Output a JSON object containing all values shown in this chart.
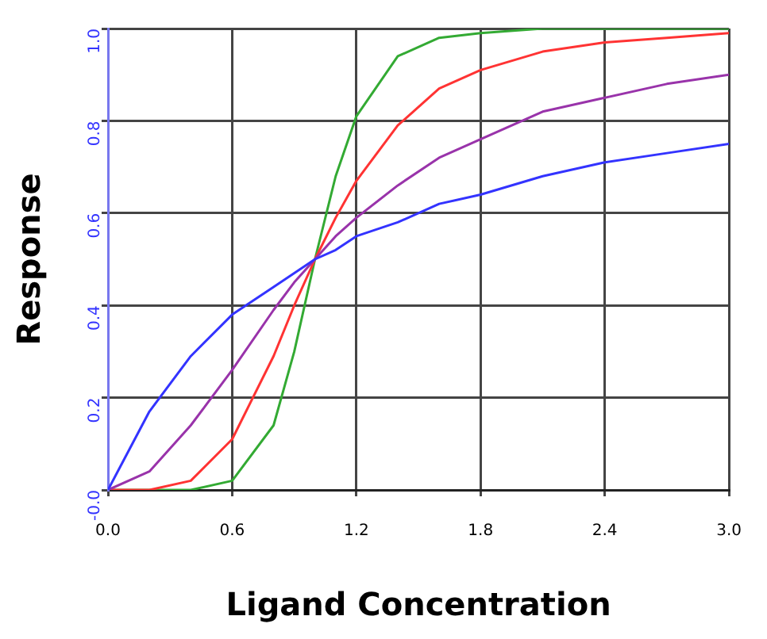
{
  "chart_data": {
    "type": "line",
    "xlabel": "Ligand Concentration",
    "ylabel": "Response",
    "x": [
      0,
      0.2,
      0.4,
      0.6,
      0.8,
      0.9,
      1.0,
      1.1,
      1.2,
      1.4,
      1.6,
      1.8,
      2.1,
      2.4,
      2.7,
      3.0
    ],
    "series": [
      {
        "color": "#3333ff",
        "values": [
          0,
          0.17,
          0.29,
          0.38,
          0.44,
          0.47,
          0.5,
          0.52,
          0.55,
          0.58,
          0.62,
          0.64,
          0.68,
          0.71,
          0.73,
          0.75
        ]
      },
      {
        "color": "#9933aa",
        "values": [
          0,
          0.04,
          0.14,
          0.26,
          0.39,
          0.45,
          0.5,
          0.55,
          0.59,
          0.66,
          0.72,
          0.76,
          0.82,
          0.85,
          0.88,
          0.9
        ]
      },
      {
        "color": "#ff3333",
        "values": [
          0,
          0,
          0.02,
          0.11,
          0.29,
          0.4,
          0.5,
          0.59,
          0.67,
          0.79,
          0.87,
          0.91,
          0.95,
          0.97,
          0.98,
          0.99
        ]
      },
      {
        "color": "#33aa33",
        "values": [
          0,
          0,
          0,
          0.02,
          0.14,
          0.3,
          0.5,
          0.68,
          0.81,
          0.94,
          0.98,
          0.99,
          1,
          1,
          1,
          1
        ]
      }
    ],
    "xlim": [
      0,
      3
    ],
    "xticks": [
      {
        "value": 0,
        "label": "0.0"
      },
      {
        "value": 0.6,
        "label": "0.6"
      },
      {
        "value": 1.2,
        "label": "1.2"
      },
      {
        "value": 1.8,
        "label": "1.8"
      },
      {
        "value": 2.4,
        "label": "2.4"
      },
      {
        "value": 3,
        "label": "3.0"
      }
    ],
    "ylim": [
      0,
      1
    ],
    "yticks": [
      {
        "value": 0,
        "label": "-0.0"
      },
      {
        "value": 0.2,
        "label": "0.2"
      },
      {
        "value": 0.4,
        "label": "0.4"
      },
      {
        "value": 0.6,
        "label": "0.6"
      },
      {
        "value": 0.8,
        "label": "0.8"
      },
      {
        "value": 1,
        "label": "1.0"
      }
    ],
    "grid": true,
    "legend": false,
    "marker": "none",
    "line_style": "solid"
  }
}
